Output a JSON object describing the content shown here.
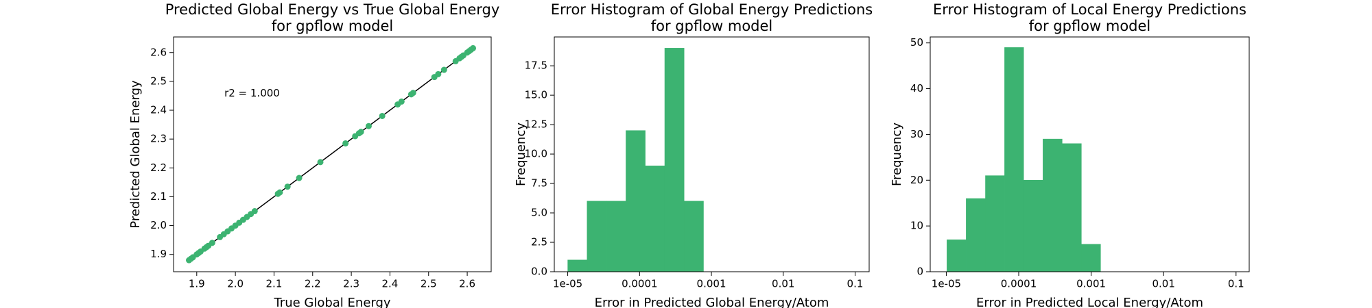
{
  "chart_data": [
    {
      "type": "scatter",
      "title": [
        "Predicted Global Energy vs True Global Energy",
        "for gpflow model"
      ],
      "xlabel": "True Global Energy",
      "ylabel": "Predicted Global Energy",
      "annotation": "r2 = 1.000",
      "x": [
        1.88,
        1.885,
        1.89,
        1.9,
        1.905,
        1.91,
        1.92,
        1.925,
        1.93,
        1.94,
        1.96,
        1.97,
        1.98,
        1.99,
        2.0,
        2.01,
        2.02,
        2.03,
        2.04,
        2.05,
        2.11,
        2.115,
        2.135,
        2.165,
        2.22,
        2.285,
        2.31,
        2.32,
        2.325,
        2.345,
        2.38,
        2.42,
        2.43,
        2.455,
        2.46,
        2.515,
        2.525,
        2.54,
        2.57,
        2.58,
        2.585,
        2.59,
        2.6,
        2.605,
        2.61,
        2.615
      ],
      "values": [
        1.88,
        1.885,
        1.89,
        1.9,
        1.905,
        1.91,
        1.92,
        1.925,
        1.93,
        1.94,
        1.96,
        1.97,
        1.98,
        1.99,
        2.0,
        2.01,
        2.02,
        2.03,
        2.04,
        2.05,
        2.11,
        2.115,
        2.135,
        2.165,
        2.22,
        2.285,
        2.31,
        2.32,
        2.325,
        2.345,
        2.38,
        2.42,
        2.43,
        2.455,
        2.46,
        2.515,
        2.525,
        2.54,
        2.57,
        2.58,
        2.585,
        2.59,
        2.6,
        2.605,
        2.61,
        2.615
      ],
      "color": "#3cb371",
      "line_color": "#000000",
      "identity_line": true,
      "xlim": [
        1.84,
        2.662
      ],
      "ylim": [
        1.84,
        2.654
      ],
      "xticks": [
        1.9,
        {
          "value": 2,
          "label": "2.0"
        },
        2.1,
        2.2,
        2.3,
        2.4,
        2.5,
        2.6
      ],
      "yticks": [
        1.9,
        {
          "value": 2,
          "label": "2.0"
        },
        2.1,
        2.2,
        2.3,
        2.4,
        2.5,
        2.6
      ]
    },
    {
      "type": "histogram",
      "title": [
        "Error Histogram of Global Energy Predictions",
        "for gpflow model"
      ],
      "xlabel": "Error in Predicted Global Energy/Atom",
      "ylabel": "Frequency",
      "bins": [
        1e-05,
        1.86e-05,
        3.47e-05,
        6.46e-05,
        0.00012,
        0.000224,
        0.000417,
        0.000776
      ],
      "values": [
        1,
        6,
        6,
        12,
        9,
        19,
        6
      ],
      "color": "#3cb371",
      "xlog": true,
      "xlim": [
        6.5e-06,
        0.157
      ],
      "ylim": [
        0,
        19.95
      ],
      "xticks": [
        {
          "value": 1e-05,
          "label": "1e-05"
        },
        0.0001,
        0.001,
        0.01,
        0.1
      ],
      "yticks": [
        {
          "value": 0,
          "label": "0.0"
        },
        2.5,
        {
          "value": 5,
          "label": "5.0"
        },
        7.5,
        {
          "value": 10,
          "label": "10.0"
        },
        12.5,
        {
          "value": 15,
          "label": "15.0"
        },
        17.5
      ]
    },
    {
      "type": "histogram",
      "title": [
        "Error Histogram of Local Energy Predictions",
        "for gpflow model"
      ],
      "xlabel": "Error in Predicted Local Energy/Atom",
      "ylabel": "Frequency",
      "bins": [
        1.02e-05,
        1.88e-05,
        3.47e-05,
        6.38e-05,
        0.000117,
        0.000216,
        0.000398,
        0.000733,
        0.00135
      ],
      "values": [
        7,
        16,
        21,
        49,
        20,
        29,
        28,
        6
      ],
      "color": "#3cb371",
      "xlog": true,
      "xlim": [
        6e-06,
        0.152
      ],
      "ylim": [
        0,
        51.3
      ],
      "xticks": [
        {
          "value": 1e-05,
          "label": "1e-05"
        },
        0.0001,
        0.001,
        0.01,
        0.1
      ],
      "yticks": [
        0,
        10,
        20,
        30,
        40,
        50
      ]
    }
  ]
}
